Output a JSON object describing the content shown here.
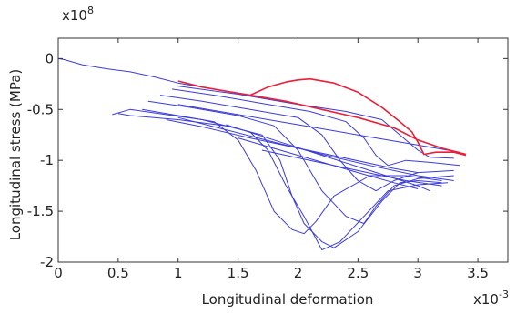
{
  "chart_data": {
    "type": "line",
    "title": "",
    "xlabel": "Longitudinal deformation",
    "ylabel": "Longitudinal stress (MPa)",
    "x_multiplier_label": "x10",
    "x_multiplier_exp": "-3",
    "y_multiplier_label": "x10",
    "y_multiplier_exp": "8",
    "xlim": [
      0,
      3.75
    ],
    "ylim": [
      -2,
      0.2
    ],
    "x_ticks": [
      0,
      0.5,
      1,
      1.5,
      2,
      2.5,
      3,
      3.5
    ],
    "x_tick_labels": [
      "0",
      "0.5",
      "1",
      "1.5",
      "2",
      "2.5",
      "3",
      "3.5"
    ],
    "y_ticks": [
      0,
      -0.5,
      -1,
      -1.5,
      -2
    ],
    "y_tick_labels": [
      "0",
      "-0.5",
      "-1",
      "-1.5",
      "-2"
    ],
    "grid": false,
    "series": [
      {
        "color": "#3b3bd9",
        "points": [
          [
            0,
            0.0
          ],
          [
            0.05,
            -0.01
          ],
          [
            0.2,
            -0.06
          ],
          [
            0.4,
            -0.1
          ],
          [
            0.6,
            -0.13
          ],
          [
            0.8,
            -0.18
          ],
          [
            1.0,
            -0.24
          ],
          [
            1.2,
            -0.28
          ]
        ]
      },
      {
        "color": "#3b3bd9",
        "points": [
          [
            0.5,
            -0.54
          ],
          [
            0.6,
            -0.56
          ],
          [
            1.0,
            -0.6
          ],
          [
            1.4,
            -0.66
          ],
          [
            1.7,
            -0.75
          ],
          [
            1.85,
            -1.0
          ],
          [
            1.95,
            -1.35
          ],
          [
            2.05,
            -1.62
          ],
          [
            2.2,
            -1.8
          ],
          [
            2.3,
            -1.86
          ],
          [
            2.5,
            -1.7
          ],
          [
            2.7,
            -1.4
          ],
          [
            2.85,
            -1.22
          ],
          [
            3.0,
            -1.2
          ],
          [
            3.2,
            -1.22
          ]
        ]
      },
      {
        "color": "#3b3bd9",
        "points": [
          [
            0.45,
            -0.55
          ],
          [
            0.6,
            -0.5
          ],
          [
            1.2,
            -0.6
          ],
          [
            1.6,
            -0.72
          ],
          [
            1.75,
            -0.9
          ],
          [
            1.9,
            -1.25
          ],
          [
            2.05,
            -1.55
          ],
          [
            2.2,
            -1.88
          ],
          [
            2.35,
            -1.8
          ],
          [
            2.55,
            -1.55
          ],
          [
            2.75,
            -1.3
          ],
          [
            3.0,
            -1.24
          ],
          [
            3.25,
            -1.22
          ]
        ]
      },
      {
        "color": "#3b3bd9",
        "points": [
          [
            0.7,
            -0.5
          ],
          [
            1.0,
            -0.56
          ],
          [
            1.3,
            -0.62
          ],
          [
            1.5,
            -0.8
          ],
          [
            1.65,
            -1.1
          ],
          [
            1.8,
            -1.5
          ],
          [
            1.95,
            -1.68
          ],
          [
            2.05,
            -1.72
          ],
          [
            2.15,
            -1.6
          ],
          [
            2.3,
            -1.35
          ],
          [
            2.6,
            -1.15
          ],
          [
            2.9,
            -1.15
          ],
          [
            3.2,
            -1.2
          ]
        ]
      },
      {
        "color": "#3b3bd9",
        "points": [
          [
            0.75,
            -0.42
          ],
          [
            1.1,
            -0.48
          ],
          [
            1.5,
            -0.56
          ],
          [
            1.8,
            -0.66
          ],
          [
            2.0,
            -0.9
          ],
          [
            2.2,
            -1.3
          ],
          [
            2.4,
            -1.55
          ],
          [
            2.55,
            -1.62
          ],
          [
            2.65,
            -1.45
          ],
          [
            2.8,
            -1.25
          ],
          [
            3.0,
            -1.18
          ],
          [
            3.3,
            -1.15
          ]
        ]
      },
      {
        "color": "#3b3bd9",
        "points": [
          [
            0.85,
            -0.36
          ],
          [
            1.2,
            -0.42
          ],
          [
            1.6,
            -0.5
          ],
          [
            2.0,
            -0.58
          ],
          [
            2.2,
            -0.75
          ],
          [
            2.35,
            -1.0
          ],
          [
            2.5,
            -1.2
          ],
          [
            2.65,
            -1.3
          ],
          [
            2.8,
            -1.2
          ],
          [
            3.0,
            -1.12
          ],
          [
            3.3,
            -1.1
          ]
        ]
      },
      {
        "color": "#3b3bd9",
        "points": [
          [
            0.95,
            -0.3
          ],
          [
            1.3,
            -0.36
          ],
          [
            1.7,
            -0.44
          ],
          [
            2.1,
            -0.52
          ],
          [
            2.4,
            -0.62
          ],
          [
            2.55,
            -0.78
          ],
          [
            2.65,
            -0.95
          ],
          [
            2.75,
            -1.05
          ],
          [
            2.9,
            -1.0
          ],
          [
            3.1,
            -1.02
          ],
          [
            3.35,
            -1.05
          ]
        ]
      },
      {
        "color": "#3b3bd9",
        "points": [
          [
            1.0,
            -0.27
          ],
          [
            1.5,
            -0.35
          ],
          [
            2.0,
            -0.45
          ],
          [
            2.4,
            -0.52
          ],
          [
            2.7,
            -0.6
          ],
          [
            2.85,
            -0.75
          ],
          [
            3.0,
            -0.9
          ],
          [
            3.1,
            -0.97
          ],
          [
            3.3,
            -0.98
          ]
        ]
      },
      {
        "color": "#3b3bd9",
        "points": [
          [
            0.9,
            -0.6
          ],
          [
            1.2,
            -0.67
          ],
          [
            1.6,
            -0.78
          ],
          [
            2.0,
            -0.88
          ],
          [
            2.4,
            -0.98
          ],
          [
            2.8,
            -1.08
          ],
          [
            3.0,
            -1.12
          ]
        ]
      },
      {
        "color": "#3b3bd9",
        "points": [
          [
            1.0,
            -0.58
          ],
          [
            1.4,
            -0.7
          ],
          [
            1.8,
            -0.82
          ],
          [
            2.2,
            -0.94
          ],
          [
            2.6,
            -1.05
          ],
          [
            3.0,
            -1.15
          ],
          [
            3.3,
            -1.2
          ]
        ]
      },
      {
        "color": "#3b3bd9",
        "points": [
          [
            1.4,
            -0.65
          ],
          [
            1.8,
            -0.8
          ],
          [
            2.2,
            -0.95
          ],
          [
            2.6,
            -1.1
          ],
          [
            3.0,
            -1.25
          ],
          [
            3.1,
            -1.3
          ]
        ]
      },
      {
        "color": "#3b3bd9",
        "points": [
          [
            1.5,
            -0.78
          ],
          [
            2.0,
            -0.95
          ],
          [
            2.5,
            -1.12
          ],
          [
            2.8,
            -1.22
          ],
          [
            3.0,
            -1.28
          ]
        ]
      },
      {
        "color": "#3b3bd9",
        "points": [
          [
            1.7,
            -0.9
          ],
          [
            2.1,
            -1.0
          ],
          [
            2.5,
            -1.1
          ],
          [
            2.9,
            -1.2
          ],
          [
            3.2,
            -1.25
          ]
        ]
      },
      {
        "color": "#3b3bd9",
        "points": [
          [
            1.0,
            -0.45
          ],
          [
            1.5,
            -0.55
          ],
          [
            2.0,
            -0.65
          ],
          [
            2.5,
            -0.75
          ],
          [
            3.0,
            -0.85
          ],
          [
            3.35,
            -0.92
          ]
        ]
      },
      {
        "color": "#e8203a",
        "points": [
          [
            1.0,
            -0.22
          ],
          [
            1.2,
            -0.28
          ],
          [
            1.6,
            -0.36
          ],
          [
            1.9,
            -0.42
          ],
          [
            2.2,
            -0.5
          ],
          [
            2.5,
            -0.58
          ],
          [
            2.8,
            -0.68
          ],
          [
            3.0,
            -0.8
          ],
          [
            3.2,
            -0.88
          ],
          [
            3.4,
            -0.94
          ]
        ]
      },
      {
        "color": "#e8203a",
        "points": [
          [
            1.6,
            -0.36
          ],
          [
            1.75,
            -0.28
          ],
          [
            1.9,
            -0.23
          ],
          [
            2.0,
            -0.21
          ],
          [
            2.1,
            -0.2
          ],
          [
            2.3,
            -0.24
          ],
          [
            2.5,
            -0.33
          ],
          [
            2.7,
            -0.48
          ],
          [
            2.85,
            -0.62
          ],
          [
            2.95,
            -0.72
          ],
          [
            3.0,
            -0.82
          ],
          [
            3.05,
            -0.94
          ],
          [
            3.15,
            -0.92
          ],
          [
            3.3,
            -0.92
          ],
          [
            3.4,
            -0.95
          ]
        ]
      }
    ]
  }
}
